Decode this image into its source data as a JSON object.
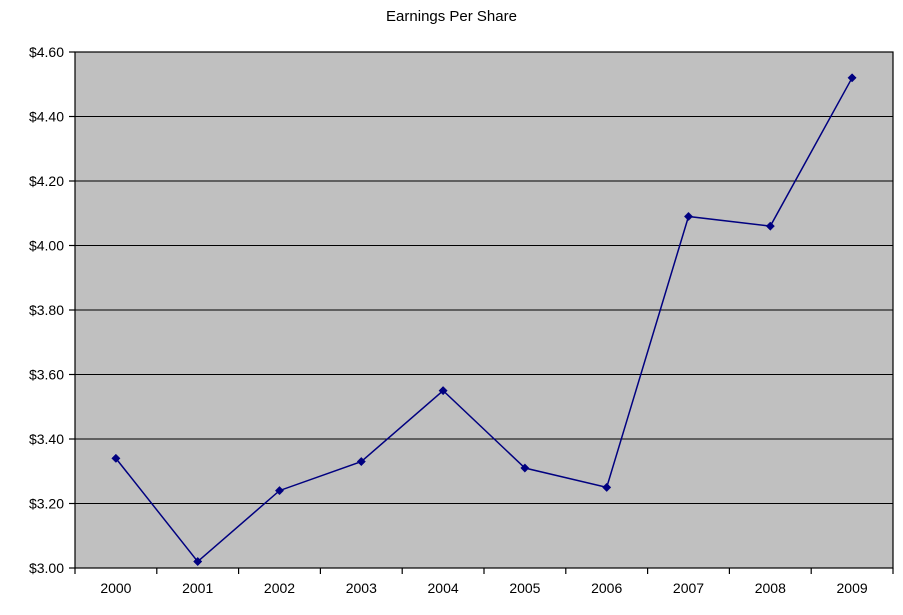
{
  "chart_data": {
    "type": "line",
    "title": "Earnings Per Share",
    "categories": [
      "2000",
      "2001",
      "2002",
      "2003",
      "2004",
      "2005",
      "2006",
      "2007",
      "2008",
      "2009"
    ],
    "series": [
      {
        "name": "Earnings Per Share",
        "values": [
          3.34,
          3.02,
          3.24,
          3.33,
          3.55,
          3.31,
          3.25,
          4.09,
          4.06,
          4.52
        ]
      }
    ],
    "xlabel": "",
    "ylabel": "",
    "ylim": [
      3.0,
      4.6
    ],
    "ytick_step": 0.2,
    "ytick_labels": [
      "$3.00",
      "$3.20",
      "$3.40",
      "$3.60",
      "$3.80",
      "$4.00",
      "$4.20",
      "$4.40",
      "$4.60"
    ],
    "grid": true,
    "legend_position": "none",
    "marker": "diamond",
    "colors": {
      "line": "#000080",
      "marker": "#000080",
      "plot_background": "#C0C0C0",
      "page_background": "#FFFFFF",
      "gridline": "#000000",
      "axis": "#000000",
      "text": "#000000"
    }
  }
}
